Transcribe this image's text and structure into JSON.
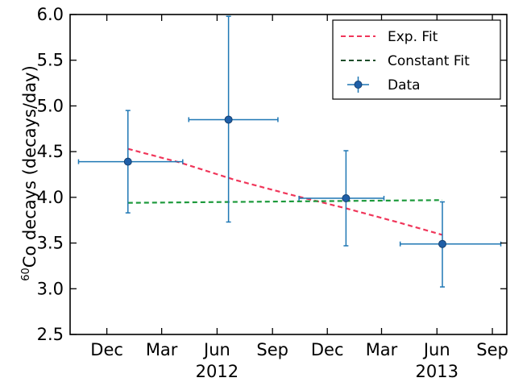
{
  "chart_data": {
    "type": "scatter",
    "ylabel_prefix": "60",
    "ylabel_main": "Co decays (decays/day)",
    "xlabel": "",
    "ylim": [
      2.5,
      6.0
    ],
    "yticks": [
      "2.5",
      "3.0",
      "3.5",
      "4.0",
      "4.5",
      "5.0",
      "5.5",
      "6.0"
    ],
    "xlim": [
      "2011-10-01",
      "2013-09-25"
    ],
    "xticks": [
      {
        "label": "Dec",
        "date": "2011-12-01"
      },
      {
        "label": "Mar",
        "date": "2012-03-01"
      },
      {
        "label": "Jun",
        "date": "2012-06-01"
      },
      {
        "label": "Sep",
        "date": "2012-09-01"
      },
      {
        "label": "Dec",
        "date": "2012-12-01"
      },
      {
        "label": "Mar",
        "date": "2013-03-01"
      },
      {
        "label": "Jun",
        "date": "2013-06-01"
      },
      {
        "label": "Sep",
        "date": "2013-09-01"
      }
    ],
    "year_labels": [
      {
        "label": "2012",
        "date": "2012-06-01"
      },
      {
        "label": "2013",
        "date": "2013-06-01"
      }
    ],
    "series": [
      {
        "name": "Data",
        "color": "#1f77b4",
        "points": [
          {
            "x": "2012-01-05",
            "y": 4.39,
            "x_lo": "2011-10-15",
            "x_hi": "2012-04-05",
            "y_lo": 3.83,
            "y_hi": 4.95
          },
          {
            "x": "2012-06-20",
            "y": 4.85,
            "x_lo": "2012-04-15",
            "x_hi": "2012-09-10",
            "y_lo": 3.73,
            "y_hi": 5.98
          },
          {
            "x": "2013-01-01",
            "y": 3.99,
            "x_lo": "2012-10-15",
            "x_hi": "2013-03-05",
            "y_lo": 3.47,
            "y_hi": 4.51
          },
          {
            "x": "2013-06-10",
            "y": 3.49,
            "x_lo": "2013-04-01",
            "x_hi": "2013-09-15",
            "y_lo": 3.02,
            "y_hi": 3.95
          }
        ]
      },
      {
        "name": "Exp. Fit",
        "color": "#f0365a",
        "x": [
          "2012-01-05",
          "2012-04-01",
          "2012-07-01",
          "2012-10-01",
          "2013-01-01",
          "2013-04-01",
          "2013-06-10"
        ],
        "y": [
          4.53,
          4.38,
          4.19,
          4.03,
          3.88,
          3.72,
          3.59
        ]
      },
      {
        "name": "Constant Fit",
        "color": "#1d9a3c",
        "x": [
          "2012-01-05",
          "2013-06-10"
        ],
        "y": [
          3.94,
          3.97
        ]
      }
    ],
    "legend": {
      "position": "top-right",
      "entries": [
        "Exp. Fit",
        "Constant Fit",
        "Data"
      ]
    },
    "grid": false
  }
}
